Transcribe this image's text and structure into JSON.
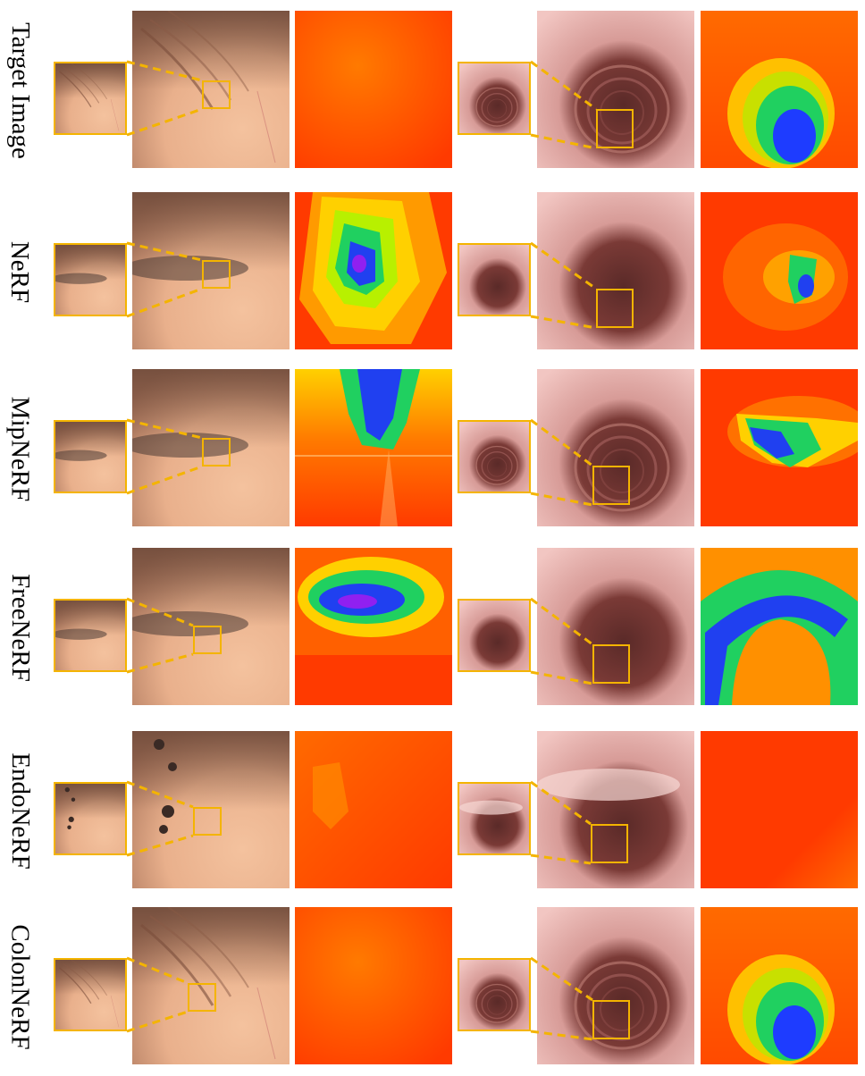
{
  "figure": {
    "rows": [
      {
        "label": "Target Image",
        "depth_left": "smooth",
        "depth_right": "deep-blue"
      },
      {
        "label": "NeRF",
        "depth_left": "blob",
        "depth_right": "noisy"
      },
      {
        "label": "MipNeRF",
        "depth_left": "streaks",
        "depth_right": "splotch"
      },
      {
        "label": "FreeNeRF",
        "depth_left": "ellipse",
        "depth_right": "arch"
      },
      {
        "label": "EndoNeRF",
        "depth_left": "flat",
        "depth_right": "flat-red"
      },
      {
        "label": "ColonNeRF",
        "depth_left": "smooth",
        "depth_right": "deep-blue"
      }
    ],
    "colors": {
      "highlight": "#f4b400",
      "tissue_left": "#e9b08c",
      "tissue_right": "#f2c6c2",
      "lumen": "#5a2a28",
      "depth_far": "#ff3a00",
      "depth_mid": "#ffd000",
      "depth_near": "#1e3cff"
    }
  }
}
